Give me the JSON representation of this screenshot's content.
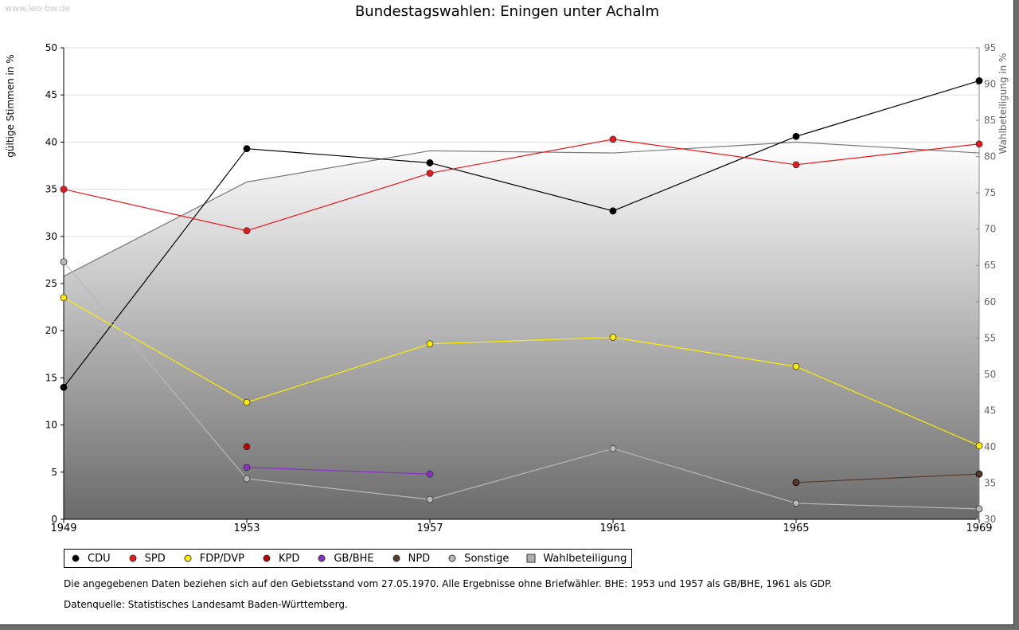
{
  "watermark": "www.leo-bw.de",
  "notes": {
    "data_basis": "Die angegebenen Daten beziehen sich auf den Gebietsstand vom 27.05.1970. Alle Ergebnisse ohne Briefwähler. BHE: 1953 und 1957 als GB/BHE, 1961 als GDP.",
    "source": "Datenquelle: Statistisches Landesamt Baden-Württemberg."
  },
  "chart_data": {
    "type": "line",
    "title": "Bundestagswahlen: Eningen unter Achalm",
    "ylabel": "gültige Stimmen in %",
    "y2label": "Wahlbeteiligung in %",
    "categories": [
      "1949",
      "1953",
      "1957",
      "1961",
      "1965",
      "1969"
    ],
    "ylim": [
      0,
      50
    ],
    "y2lim": [
      30,
      95
    ],
    "yticks": [
      0,
      5,
      10,
      15,
      20,
      25,
      30,
      35,
      40,
      45,
      50
    ],
    "y2ticks": [
      30,
      35,
      40,
      45,
      50,
      55,
      60,
      65,
      70,
      75,
      80,
      85,
      90,
      95
    ],
    "grid": true,
    "legend_position": "bottom",
    "series": [
      {
        "name": "CDU",
        "color": "#000000",
        "values": [
          14.0,
          39.3,
          37.8,
          32.7,
          40.6,
          46.5
        ]
      },
      {
        "name": "SPD",
        "color": "#e8191d",
        "values": [
          35.0,
          30.6,
          36.7,
          40.3,
          37.6,
          39.8
        ]
      },
      {
        "name": "FDP/DVP",
        "color": "#ffee00",
        "values": [
          23.5,
          12.4,
          18.6,
          19.3,
          16.2,
          7.8
        ]
      },
      {
        "name": "KPD",
        "color": "#c00000",
        "values": [
          null,
          7.7,
          null,
          null,
          null,
          null
        ]
      },
      {
        "name": "GB/BHE",
        "color": "#8b2fc9",
        "values": [
          null,
          5.5,
          4.8,
          null,
          null,
          null
        ]
      },
      {
        "name": "NPD",
        "color": "#5a3a26",
        "values": [
          null,
          null,
          null,
          null,
          3.9,
          4.8
        ]
      },
      {
        "name": "Sonstige",
        "color": "#b8b8b8",
        "values": [
          27.3,
          4.3,
          2.1,
          7.5,
          1.7,
          1.1
        ]
      }
    ],
    "turnout": {
      "name": "Wahlbeteiligung",
      "axis": "right",
      "values": [
        63.5,
        76.5,
        80.8,
        80.5,
        82.0,
        80.5
      ]
    }
  }
}
